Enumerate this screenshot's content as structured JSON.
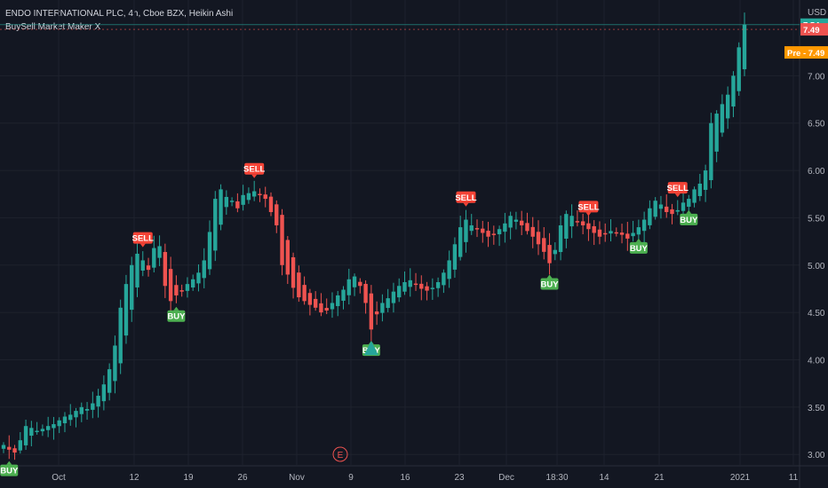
{
  "header": {
    "title": "ENDO INTERNATIONAL PLC, 4h, Cboe BZX, Heikin Ashi",
    "indicator": "BuySell Market Maker X"
  },
  "axis": {
    "currency": "USD",
    "y_ticks": [
      "7.00",
      "6.50",
      "6.00",
      "5.50",
      "5.00",
      "4.50",
      "4.00",
      "3.50",
      "3.00"
    ],
    "x_ticks": [
      "Oct",
      "12",
      "19",
      "26",
      "Nov",
      "9",
      "16",
      "23",
      "Dec",
      "18:30",
      "14",
      "21",
      "2021",
      "11"
    ]
  },
  "price_tags": {
    "last": "7.54",
    "close": "7.49",
    "pre_label": "Pre",
    "pre": "7.49"
  },
  "event_marker": "E",
  "signals": [
    "BUY",
    "SELL",
    "BUY",
    "SELL",
    "BUY",
    "SELL",
    "BUY",
    "SELL",
    "BUY",
    "SELL",
    "BUY"
  ],
  "colors": {
    "up": "#26a69a",
    "down": "#ef5350",
    "background": "#131722",
    "grid": "#1e222d",
    "pre": "#ff9800",
    "buy_tag": "#4caf50",
    "sell_tag": "#f44336"
  },
  "chart_data": {
    "type": "candlestick",
    "style": "Heikin Ashi",
    "ylim": [
      2.88,
      7.8
    ],
    "grid": true,
    "closes": [
      3.1,
      3.05,
      3.02,
      3.15,
      3.3,
      3.28,
      3.25,
      3.27,
      3.3,
      3.32,
      3.36,
      3.4,
      3.42,
      3.46,
      3.5,
      3.48,
      3.54,
      3.62,
      3.74,
      3.9,
      4.15,
      4.55,
      4.8,
      5.0,
      5.12,
      5.05,
      4.95,
      5.18,
      5.2,
      4.78,
      4.62,
      4.68,
      4.72,
      4.8,
      4.85,
      4.92,
      5.05,
      5.35,
      5.7,
      5.8,
      5.72,
      5.68,
      5.6,
      5.74,
      5.76,
      5.78,
      5.74,
      5.7,
      5.56,
      5.42,
      5.0,
      4.9,
      4.76,
      4.66,
      4.62,
      4.58,
      4.55,
      4.5,
      4.52,
      4.6,
      4.68,
      4.74,
      4.85,
      4.88,
      4.78,
      4.6,
      4.32,
      4.48,
      4.6,
      4.65,
      4.72,
      4.78,
      4.82,
      4.84,
      4.8,
      4.75,
      4.73,
      4.76,
      4.82,
      4.92,
      5.05,
      5.22,
      5.4,
      5.48,
      5.42,
      5.38,
      5.34,
      5.3,
      5.32,
      5.38,
      5.44,
      5.52,
      5.48,
      5.42,
      5.36,
      5.3,
      5.22,
      5.14,
      5.02,
      5.16,
      5.42,
      5.54,
      5.52,
      5.46,
      5.42,
      5.38,
      5.34,
      5.3,
      5.33,
      5.36,
      5.34,
      5.32,
      5.28,
      5.34,
      5.4,
      5.48,
      5.6,
      5.68,
      5.64,
      5.56,
      5.54,
      5.58,
      5.66,
      5.7,
      5.8,
      5.86,
      6.0,
      6.5,
      6.6,
      6.7,
      6.8,
      7.0,
      7.3,
      7.54
    ],
    "signals": [
      {
        "type": "BUY",
        "index": 1
      },
      {
        "type": "SELL",
        "index": 25
      },
      {
        "type": "BUY",
        "index": 31
      },
      {
        "type": "SELL",
        "index": 45
      },
      {
        "type": "BUY",
        "index": 66
      },
      {
        "type": "SELL",
        "index": 83
      },
      {
        "type": "BUY",
        "index": 98
      },
      {
        "type": "SELL",
        "index": 105
      },
      {
        "type": "BUY",
        "index": 114
      },
      {
        "type": "SELL",
        "index": 121
      },
      {
        "type": "BUY",
        "index": 123
      }
    ],
    "last_price": 7.54,
    "close_price": 7.49,
    "pre_market": 7.49
  }
}
